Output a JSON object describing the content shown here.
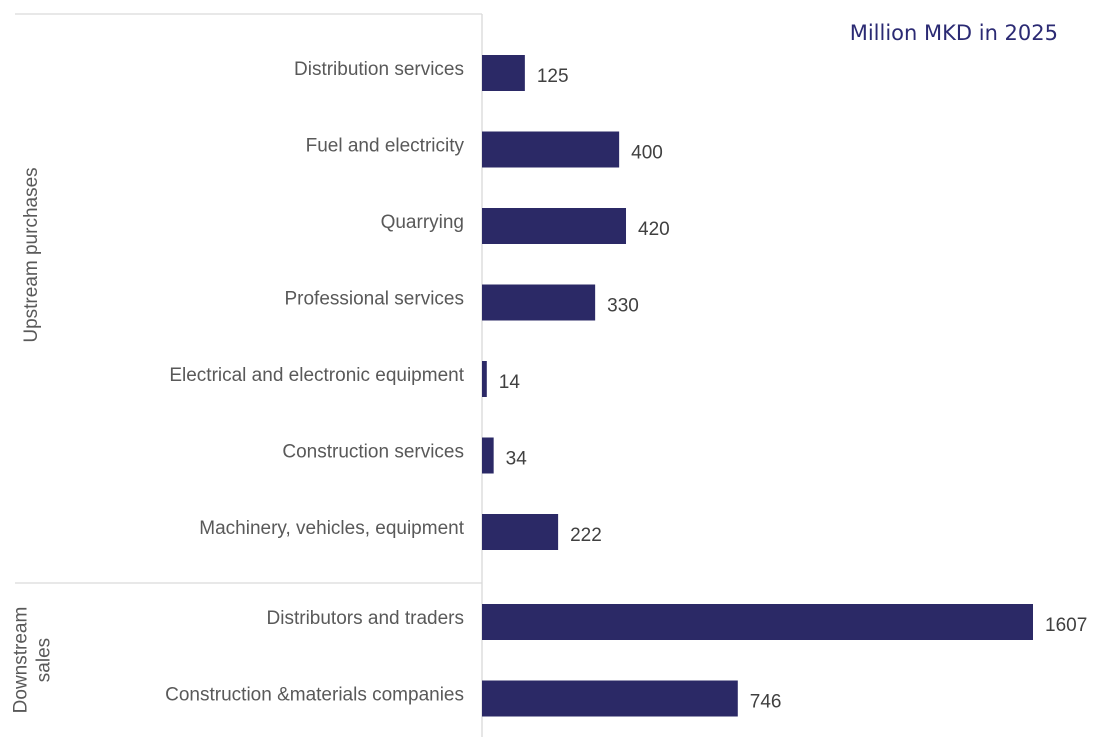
{
  "chart_data": {
    "type": "bar",
    "orientation": "horizontal",
    "annotation": "Million MKD in 2025",
    "color": "#2b2966",
    "groups": [
      {
        "label": [
          "Upstream purchases"
        ],
        "categories": [
          "Distribution services",
          "Fuel and electricity",
          "Quarrying",
          "Professional services",
          "Electrical and electronic equipment",
          "Construction services",
          "Machinery, vehicles, equipment"
        ],
        "values": [
          125,
          400,
          420,
          330,
          14,
          34,
          222
        ]
      },
      {
        "label": [
          "Downstream",
          "sales"
        ],
        "categories": [
          "Distributors and traders",
          "Construction &materials companies"
        ],
        "values": [
          1607,
          746
        ]
      }
    ]
  }
}
